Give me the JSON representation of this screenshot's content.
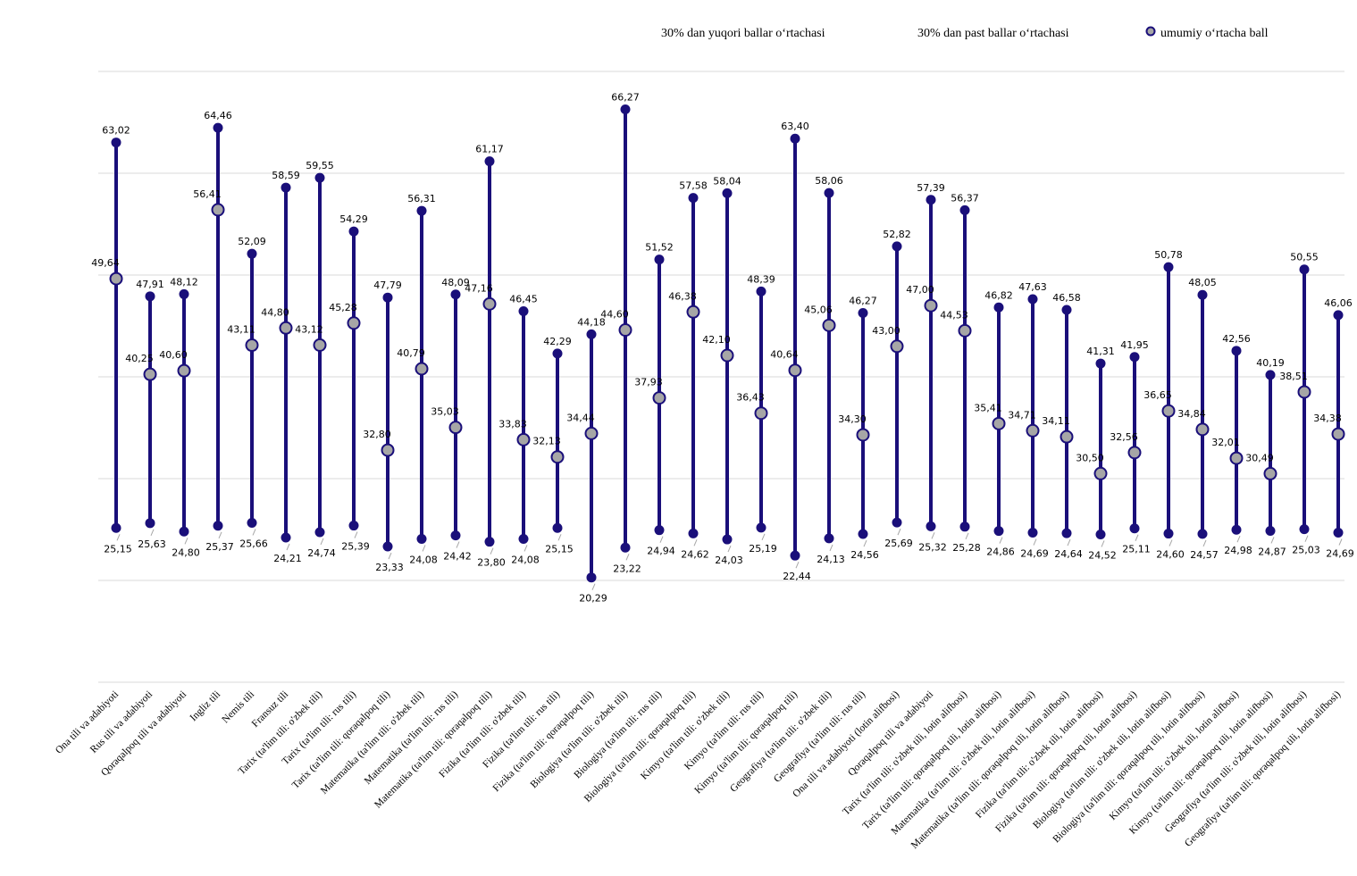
{
  "chart_data": {
    "type": "dumbbell",
    "ylim": [
      10,
      70
    ],
    "grid": true,
    "legend_position": "top-right",
    "colors": {
      "line": "#1a0f7a",
      "high_marker": "#1a0f7a",
      "avg_marker_fill": "#a6a6a6",
      "avg_marker_stroke": "#1a0f7a",
      "grid": "#d9d9d9",
      "leader": "#a6a6a6"
    },
    "series": [
      {
        "name": "30% dan yuqori ballar o‘rtachasi",
        "key": "high"
      },
      {
        "name": "30% dan past ballar o‘rtachasi",
        "key": "low"
      },
      {
        "name": "umumiy o‘rtacha ball",
        "key": "avg"
      }
    ],
    "categories": [
      "Ona tili va adabiyoti",
      "Rus tili va adabiyoti",
      "Qoraqalpoq tili va adabiyoti",
      "Ingliz tili",
      "Nemis tili",
      "Fransuz tili",
      "Tarix (ta'lim tili: o'zbek tili)",
      "Tarix (ta'lim tili: rus tili)",
      "Tarix (ta'lim tili: qoraqalpoq tili)",
      "Matematika (ta'lim tili: o'zbek tili)",
      "Matematika (ta'lim tili: rus tili)",
      "Matematika (ta'lim tili: qoraqalpoq tili)",
      "Fizika (ta'lim tili: o'zbek tili)",
      "Fizika (ta'lim tili: rus tili)",
      "Fizika (ta'lim tili: qoraqalpoq tili)",
      "Biologiya (ta'lim tili: o'zbek tili)",
      "Biologiya (ta'lim tili: rus tili)",
      "Biologiya (ta'lim tili: qoraqalpoq tili)",
      "Kimyo (ta'lim tili: o'zbek tili)",
      "Kimyo (ta'lim tili: rus tili)",
      "Kimyo (ta'lim tili: qoraqalpoq tili)",
      "Geografiya (ta'lim tili: o'zbek tili)",
      "Geografiya (ta'lim tili: rus tili)",
      "Ona tili va adabiyoti (lotin alifbosi)",
      "Qoraqalpoq tili va adabiyoti",
      "Tarix  (ta'lim tili: o'zbek tili, lotin alifbosi)",
      "Tarix (ta'lim tili: qoraqalpoq tili, lotin alifbosi)",
      "Matematika  (ta'lim tili: o'zbek tili, lotin alifbosi)",
      "Matematika (ta'lim tili: qoraqalpoq tili, lotin alifbosi)",
      "Fizika  (ta'lim tili: o'zbek tili, lotin alifbosi)",
      "Fizika (ta'lim tili: qoraqalpoq tili, lotin alifbosi)",
      "Biologiya  (ta'lim tili: o'zbek tili, lotin alifbosi)",
      "Biologiya (ta'lim tili: qoraqalpoq tili, lotin alifbosi)",
      "Kimyo  (ta'lim tili: o'zbek tili, lotin alifbosi)",
      "Kimyo (ta'lim tili: qoraqalpoq tili, lotin alifbosi)",
      "Geografiya  (ta'lim tili: o'zbek tili, lotin alifbosi)",
      "Geografiya (ta'lim tili: qoraqalpoq tili, lotin alifbosi)"
    ],
    "high": [
      63.02,
      47.91,
      48.12,
      64.46,
      52.09,
      58.59,
      59.55,
      54.29,
      47.79,
      56.31,
      48.09,
      61.17,
      46.45,
      42.29,
      44.18,
      66.27,
      51.52,
      57.58,
      58.04,
      48.39,
      63.4,
      58.06,
      46.27,
      52.82,
      57.39,
      56.37,
      46.82,
      47.63,
      46.58,
      41.31,
      41.95,
      50.78,
      48.05,
      42.56,
      40.19,
      50.55,
      46.06
    ],
    "low": [
      25.15,
      25.63,
      24.8,
      25.37,
      25.66,
      24.21,
      24.74,
      25.39,
      23.33,
      24.08,
      24.42,
      23.8,
      24.08,
      25.15,
      20.29,
      23.22,
      24.94,
      24.62,
      24.03,
      25.19,
      22.44,
      24.13,
      24.56,
      25.69,
      25.32,
      25.28,
      24.86,
      24.69,
      24.64,
      24.52,
      25.11,
      24.6,
      24.57,
      24.98,
      24.87,
      25.03,
      24.69
    ],
    "avg": [
      49.64,
      40.25,
      40.6,
      56.41,
      43.11,
      44.8,
      43.12,
      45.28,
      32.8,
      40.79,
      35.03,
      47.16,
      33.83,
      32.13,
      34.44,
      44.6,
      37.93,
      46.38,
      42.1,
      36.43,
      40.64,
      45.06,
      34.3,
      43.0,
      47.0,
      44.53,
      35.41,
      34.71,
      34.11,
      30.5,
      32.56,
      36.65,
      34.84,
      32.01,
      30.49,
      38.51,
      34.38
    ],
    "high_labels": [
      "63,02",
      "47,91",
      "48,12",
      "64,46",
      "52,09",
      "58,59",
      "59,55",
      "54,29",
      "47,79",
      "56,31",
      "48,09",
      "61,17",
      "46,45",
      "42,29",
      "44,18",
      "66,27",
      "51,52",
      "57,58",
      "58,04",
      "48,39",
      "63,40",
      "58,06",
      "46,27",
      "52,82",
      "57,39",
      "56,37",
      "46,82",
      "47,63",
      "46,58",
      "41,31",
      "41,95",
      "50,78",
      "48,05",
      "42,56",
      "40,19",
      "50,55",
      "46,06"
    ],
    "low_labels": [
      "25,15",
      "25,63",
      "24,80",
      "25,37",
      "25,66",
      "24,21",
      "24,74",
      "25,39",
      "23,33",
      "24,08",
      "24,42",
      "23,80",
      "24,08",
      "25,15",
      "20,29",
      "23,22",
      "24,94",
      "24,62",
      "24,03",
      "25,19",
      "22,44",
      "24,13",
      "24,56",
      "25,69",
      "25,32",
      "25,28",
      "24,86",
      "24,69",
      "24,64",
      "24,52",
      "25,11",
      "24,60",
      "24,57",
      "24,98",
      "24,87",
      "25,03",
      "24,69"
    ],
    "avg_labels": [
      "49,64",
      "40,25",
      "40,60",
      "56,41",
      "43,11",
      "44,80",
      "43,12",
      "45,28",
      "32,80",
      "40,79",
      "35,03",
      "47,16",
      "33,83",
      "32,13",
      "34,44",
      "44,60",
      "37,93",
      "46,38",
      "42,10",
      "36,43",
      "40,64",
      "45,06",
      "34,30",
      "43,00",
      "47,00",
      "44,53",
      "35,41",
      "34,71",
      "34,11",
      "30,50",
      "32,56",
      "36,65",
      "34,84",
      "32,01",
      "30,49",
      "38,51",
      "34,38"
    ]
  }
}
